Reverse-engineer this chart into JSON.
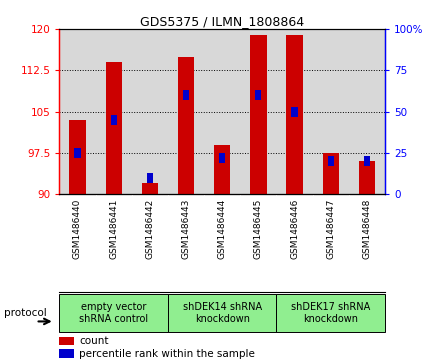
{
  "title": "GDS5375 / ILMN_1808864",
  "samples": [
    "GSM1486440",
    "GSM1486441",
    "GSM1486442",
    "GSM1486443",
    "GSM1486444",
    "GSM1486445",
    "GSM1486446",
    "GSM1486447",
    "GSM1486448"
  ],
  "counts": [
    103.5,
    114.0,
    92.0,
    115.0,
    99.0,
    119.0,
    119.0,
    97.5,
    96.0
  ],
  "percentiles": [
    25,
    45,
    10,
    60,
    22,
    60,
    50,
    20,
    20
  ],
  "ylim_left": [
    90,
    120
  ],
  "ylim_right": [
    0,
    100
  ],
  "yticks_left": [
    90,
    97.5,
    105,
    112.5,
    120
  ],
  "yticks_right": [
    0,
    25,
    50,
    75,
    100
  ],
  "ytick_labels_left": [
    "90",
    "97.5",
    "105",
    "112.5",
    "120"
  ],
  "ytick_labels_right": [
    "0",
    "25",
    "50",
    "75",
    "100%"
  ],
  "bar_color": "#cc0000",
  "percentile_color": "#0000cc",
  "bar_bottom": 90,
  "groups": [
    {
      "label": "empty vector\nshRNA control",
      "start": 0,
      "end": 3
    },
    {
      "label": "shDEK14 shRNA\nknockdown",
      "start": 3,
      "end": 6
    },
    {
      "label": "shDEK17 shRNA\nknockdown",
      "start": 6,
      "end": 9
    }
  ],
  "group_color": "#90ee90",
  "xtick_bg_color": "#d0d0d0",
  "plot_bg_color": "#d8d8d8",
  "protocol_label": "protocol",
  "legend_count_label": "count",
  "legend_percentile_label": "percentile rank within the sample",
  "bar_width": 0.45,
  "title_fontsize": 9,
  "tick_fontsize": 7.5,
  "sample_fontsize": 6.5,
  "group_fontsize": 7
}
